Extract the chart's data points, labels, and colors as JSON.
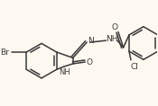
{
  "bg_color": "#fdf8f0",
  "bond_color": "#3a3a3a",
  "text_color": "#3a3a3a",
  "line_width": 1.1,
  "font_size": 6.5,
  "figsize": [
    1.75,
    1.18
  ],
  "dpi": 100,
  "xlim": [
    0,
    175
  ],
  "ylim": [
    0,
    118
  ]
}
